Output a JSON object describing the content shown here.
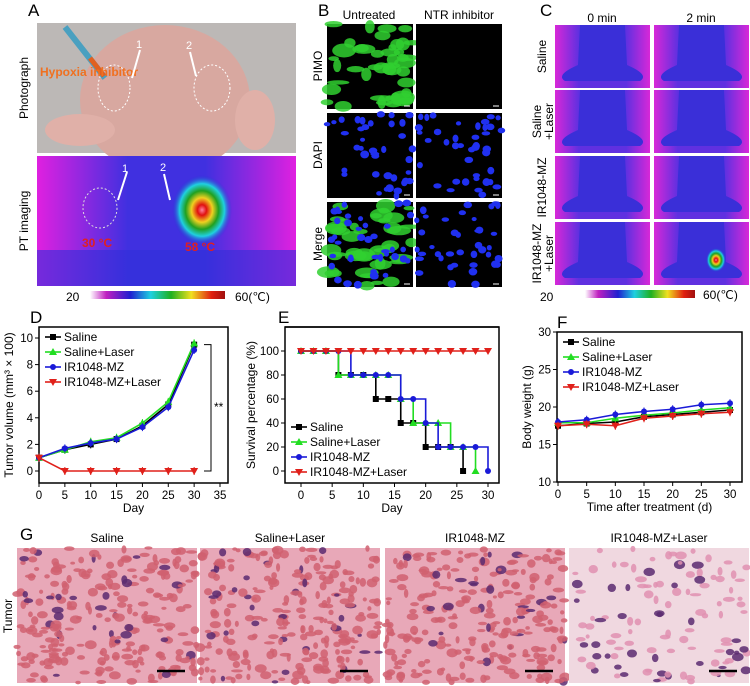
{
  "panelA": {
    "label": "A",
    "row1": "Photograph",
    "row2": "PT imaging",
    "annotation": "Hypoxia inhibitor",
    "arrow1": "1",
    "arrow2": "2",
    "temp1": "30 °C",
    "temp2": "58 °C",
    "scale_min": "20",
    "scale_max": "60(℃)"
  },
  "panelB": {
    "label": "B",
    "columns": [
      "Untreated",
      "NTR inhibitor"
    ],
    "rows": [
      "PIMO",
      "DAPI",
      "Merge"
    ]
  },
  "panelC": {
    "label": "C",
    "columns": [
      "0 min",
      "2 min"
    ],
    "rows": [
      [
        "Saline",
        ""
      ],
      [
        "Saline",
        "+Laser"
      ],
      [
        "IR1048-MZ",
        ""
      ],
      [
        "IR1048-MZ",
        "+Laser"
      ]
    ],
    "scale_min": "20",
    "scale_max": "60(℃)"
  },
  "panelG": {
    "label": "G",
    "row_label": "Tumor",
    "titles": [
      "Saline",
      "Saline+Laser",
      "IR1048-MZ",
      "IR1048-MZ+Laser"
    ]
  },
  "colors": {
    "Saline": "#000000",
    "Saline+Laser": "#22dd22",
    "IR1048-MZ": "#1a1ad8",
    "IR1048-MZ+Laser": "#e0201a"
  },
  "chart_data": [
    {
      "panel": "D",
      "type": "line",
      "xlabel": "Day",
      "ylabel": "Tumor volume (mm³ × 100)",
      "xlim": [
        0,
        35
      ],
      "ylim": [
        0,
        10
      ],
      "xticks": [
        0,
        5,
        10,
        15,
        20,
        25,
        30,
        35
      ],
      "yticks": [
        0,
        2,
        4,
        6,
        8,
        10
      ],
      "legend": "top-left",
      "annotation": "**",
      "x": [
        0,
        5,
        10,
        15,
        20,
        25,
        30
      ],
      "series": [
        {
          "name": "Saline",
          "marker": "square",
          "values": [
            1,
            1.6,
            2.0,
            2.4,
            3.4,
            5.0,
            9.5
          ]
        },
        {
          "name": "Saline+Laser",
          "marker": "triangle-up",
          "values": [
            1,
            1.6,
            2.2,
            2.5,
            3.6,
            5.2,
            9.6
          ]
        },
        {
          "name": "IR1048-MZ",
          "marker": "circle",
          "values": [
            1,
            1.7,
            2.1,
            2.4,
            3.3,
            4.8,
            9.1
          ]
        },
        {
          "name": "IR1048-MZ+Laser",
          "marker": "triangle-down",
          "values": [
            1,
            0,
            0,
            0,
            0,
            0,
            0
          ]
        }
      ]
    },
    {
      "panel": "E",
      "type": "line",
      "step": true,
      "xlabel": "Day",
      "ylabel": "Survival percentage (%)",
      "xlim": [
        0,
        30
      ],
      "ylim": [
        0,
        100
      ],
      "xticks": [
        0,
        5,
        10,
        15,
        20,
        25,
        30
      ],
      "yticks": [
        0,
        20,
        40,
        60,
        80,
        100
      ],
      "legend": "bottom-left",
      "x": [
        0,
        2,
        4,
        6,
        8,
        10,
        12,
        14,
        16,
        18,
        20,
        22,
        24,
        26,
        28,
        30
      ],
      "series": [
        {
          "name": "Saline",
          "marker": "square",
          "values": [
            100,
            100,
            100,
            80,
            80,
            80,
            60,
            60,
            40,
            40,
            20,
            20,
            20,
            0,
            null,
            null
          ]
        },
        {
          "name": "Saline+Laser",
          "marker": "triangle-up",
          "values": [
            100,
            100,
            100,
            80,
            80,
            80,
            80,
            80,
            60,
            40,
            40,
            40,
            20,
            20,
            0,
            null
          ]
        },
        {
          "name": "IR1048-MZ",
          "marker": "circle",
          "values": [
            100,
            100,
            100,
            100,
            80,
            80,
            80,
            80,
            60,
            60,
            40,
            20,
            20,
            20,
            20,
            0
          ]
        },
        {
          "name": "IR1048-MZ+Laser",
          "marker": "triangle-down",
          "values": [
            100,
            100,
            100,
            100,
            100,
            100,
            100,
            100,
            100,
            100,
            100,
            100,
            100,
            100,
            100,
            100
          ]
        }
      ]
    },
    {
      "panel": "F",
      "type": "line",
      "xlabel": "Time after treatment (d)",
      "ylabel": "Body weight (g)",
      "xlim": [
        0,
        32
      ],
      "ylim": [
        10,
        30
      ],
      "xticks": [
        0,
        5,
        10,
        15,
        20,
        25,
        30
      ],
      "yticks": [
        10,
        15,
        20,
        25,
        30
      ],
      "legend": "top-left",
      "x": [
        0,
        5,
        10,
        15,
        20,
        25,
        30
      ],
      "series": [
        {
          "name": "Saline",
          "marker": "square",
          "values": [
            17.5,
            17.8,
            18.0,
            18.7,
            19.0,
            19.3,
            19.6
          ]
        },
        {
          "name": "Saline+Laser",
          "marker": "triangle-up",
          "values": [
            17.9,
            17.9,
            18.5,
            18.9,
            19.2,
            19.6,
            19.9
          ]
        },
        {
          "name": "IR1048-MZ",
          "marker": "circle",
          "values": [
            18.0,
            18.3,
            19.0,
            19.4,
            19.7,
            20.3,
            20.5
          ]
        },
        {
          "name": "IR1048-MZ+Laser",
          "marker": "triangle-down",
          "values": [
            17.5,
            17.7,
            17.5,
            18.5,
            18.8,
            19.1,
            19.3
          ]
        }
      ]
    }
  ]
}
